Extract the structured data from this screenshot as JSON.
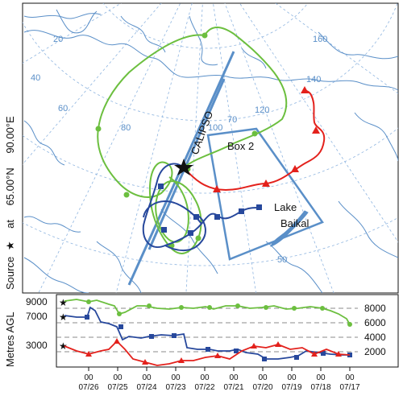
{
  "source": {
    "prefix": "Source",
    "mid": "at",
    "lat": "65.00°N",
    "lon": "90.00°E"
  },
  "map_labels": {
    "calipso": "CALIPSO",
    "box": "Box 2",
    "lake_line1": "Lake",
    "lake_line2": "Baikal"
  },
  "grid_labels": [
    "20",
    "40",
    "60",
    "80",
    "100",
    "120",
    "140",
    "160",
    "70",
    "50"
  ],
  "altitude": {
    "ylabel": "Metres AGL",
    "left_values": [
      "9000",
      "7000",
      "3000"
    ],
    "right_ticks": [
      "8000",
      "6000",
      "4000",
      "2000"
    ]
  },
  "time_axis": {
    "hour_label": "00",
    "dates": [
      "07/26",
      "07/25",
      "07/24",
      "07/23",
      "07/22",
      "07/21",
      "07/20",
      "07/19",
      "07/18",
      "07/17"
    ]
  },
  "colors": {
    "green": "#6cbf3f",
    "blue": "#27489c",
    "red": "#e3211c",
    "map": "#5a8fc8",
    "grid": "#8fb5e0"
  }
}
